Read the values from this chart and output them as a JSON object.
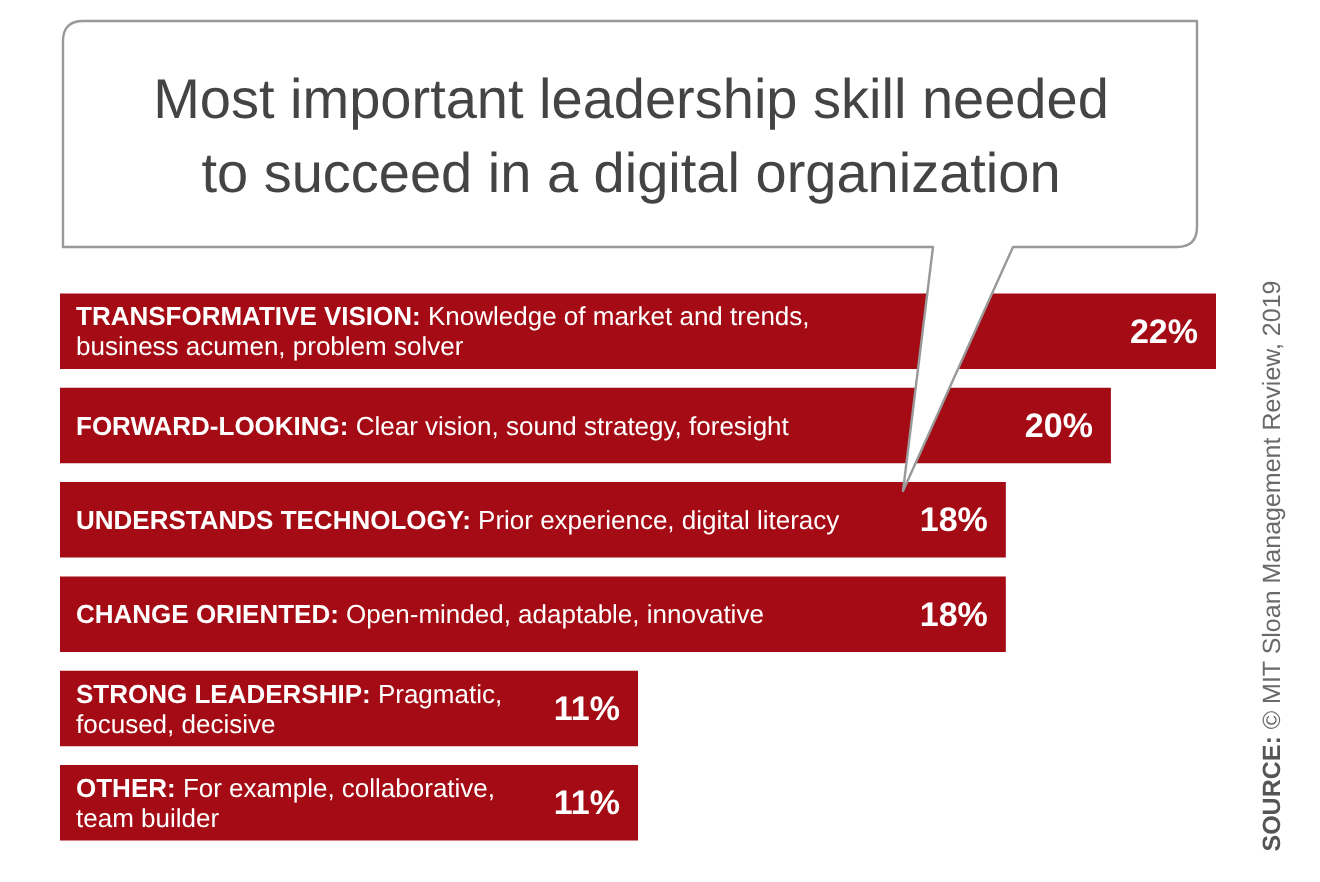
{
  "chart_data": {
    "type": "bar",
    "orientation": "horizontal",
    "title": "Most important leadership skill needed to succeed in a digital organization",
    "categories": [
      "TRANSFORMATIVE VISION: Knowledge of market and trends, business acumen, problem solver",
      "FORWARD-LOOKING: Clear vision, sound strategy, foresight",
      "UNDERSTANDS TECHNOLOGY: Prior experience, digital literacy",
      "CHANGE ORIENTED: Open-minded, adaptable, innovative",
      "STRONG LEADERSHIP: Pragmatic, focused, decisive",
      "OTHER: For example, collaborative, team builder"
    ],
    "values": [
      22,
      20,
      18,
      18,
      11,
      11
    ],
    "value_labels": [
      "22%",
      "20%",
      "18%",
      "18%",
      "11%",
      "11%"
    ],
    "color": "#a50b14",
    "tick_labels": "y",
    "annotations": [
      "SOURCE: © MIT Sloan Management Review, 2019"
    ]
  }
}
